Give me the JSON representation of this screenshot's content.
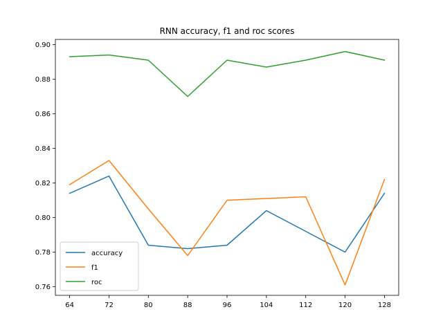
{
  "chart_data": {
    "type": "line",
    "title": "RNN accuracy, f1 and roc scores",
    "xlabel": "",
    "ylabel": "",
    "x": [
      64,
      72,
      80,
      88,
      96,
      104,
      112,
      120,
      128
    ],
    "xticks": [
      "64",
      "72",
      "80",
      "88",
      "96",
      "104",
      "112",
      "120",
      "128"
    ],
    "ylim": [
      0.755,
      0.903
    ],
    "yticks": [
      "0.76",
      "0.78",
      "0.80",
      "0.82",
      "0.84",
      "0.86",
      "0.88",
      "0.90"
    ],
    "ytick_values": [
      0.76,
      0.78,
      0.8,
      0.82,
      0.84,
      0.86,
      0.88,
      0.9
    ],
    "grid": false,
    "legend_position": "lower-left",
    "series": [
      {
        "name": "accuracy",
        "color": "#1f77b4",
        "values": [
          0.814,
          0.824,
          0.784,
          0.782,
          0.784,
          0.804,
          0.792,
          0.78,
          0.814
        ]
      },
      {
        "name": "f1",
        "color": "#ff7f0e",
        "values": [
          0.819,
          0.833,
          0.805,
          0.778,
          0.81,
          0.811,
          0.812,
          0.761,
          0.822
        ]
      },
      {
        "name": "roc",
        "color": "#2ca02c",
        "values": [
          0.893,
          0.894,
          0.891,
          0.87,
          0.891,
          0.887,
          0.891,
          0.896,
          0.891
        ]
      }
    ]
  }
}
